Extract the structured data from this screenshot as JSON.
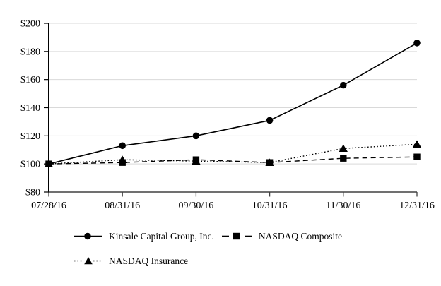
{
  "chart_data": {
    "type": "line",
    "title": "",
    "xlabel": "",
    "ylabel": "",
    "x_tick_labels": [
      "07/28/16",
      "08/31/16",
      "09/30/16",
      "10/31/16",
      "11/30/16",
      "12/31/16"
    ],
    "y_tick_labels": [
      "$80",
      "$100",
      "$120",
      "$140",
      "$160",
      "$180",
      "$200"
    ],
    "ylim": [
      80,
      200
    ],
    "y_tick_step": 20,
    "grid": true,
    "legend_position": "bottom-left",
    "series": [
      {
        "name": "Kinsale Capital Group, Inc.",
        "marker": "circle",
        "line_style": "solid",
        "values": [
          100,
          113,
          120,
          131,
          156,
          186
        ]
      },
      {
        "name": "NASDAQ Composite",
        "marker": "square",
        "line_style": "dashed",
        "values": [
          100,
          101,
          103,
          101,
          104,
          105
        ]
      },
      {
        "name": "NASDAQ Insurance",
        "marker": "triangle",
        "line_style": "dotted",
        "values": [
          100,
          103,
          102,
          101,
          111,
          114
        ]
      }
    ],
    "colors": {
      "series": "#000000",
      "grid": "#d9d9d9",
      "y_axis": "#000000",
      "x_axis": "#404040",
      "text": "#000000"
    }
  }
}
